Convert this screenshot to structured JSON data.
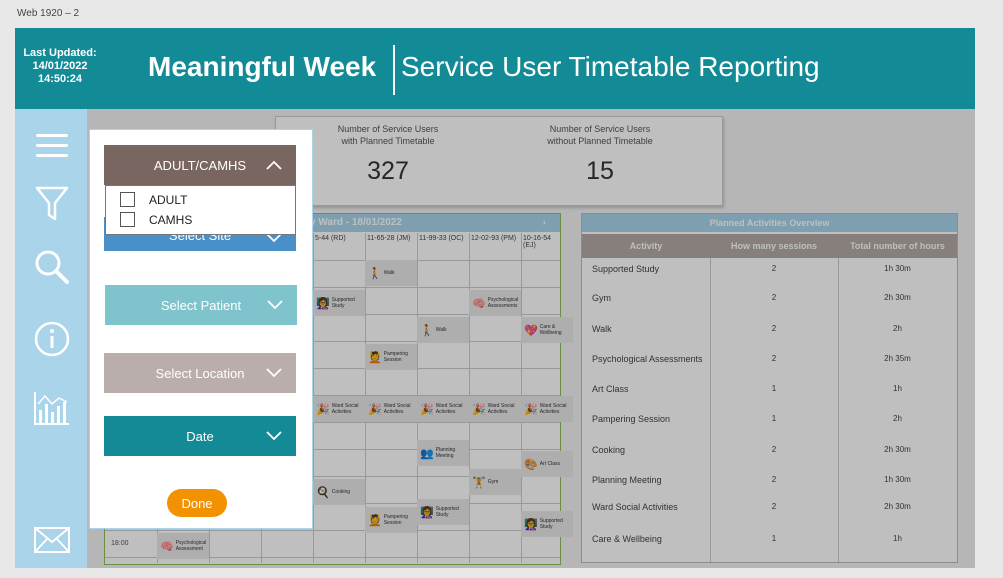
{
  "frame_title": "Web 1920 – 2",
  "header": {
    "last_updated_label": "Last Updated:",
    "last_updated_date": "14/01/2022",
    "last_updated_time": "14:50:24",
    "title_main": "Meaningful Week",
    "title_sub": "Service User Timetable Reporting"
  },
  "sidebar": {
    "icons": [
      "menu-icon",
      "filter-icon",
      "search-icon",
      "info-icon",
      "chart-icon",
      "mail-icon"
    ]
  },
  "kpi": {
    "with_label_1": "Number of Service Users",
    "with_label_2": "with Planned Timetable",
    "with_value": "327",
    "without_label_1": "Number of Service Users",
    "without_label_2": "without Planned Timetable",
    "without_value": "15"
  },
  "timetable": {
    "title": "y Ward - 18/01/2022",
    "columns": [
      "5-44 (RD)",
      "11-65-28 (JM)",
      "11-99-33 (OC)",
      "12-02-93 (PM)",
      "10-16-54 (EJ)"
    ],
    "time_label": "18:00",
    "cells": [
      {
        "label": "Walk",
        "emoji": "🚶"
      },
      {
        "label": "Supported Study",
        "emoji": "👩‍🏫"
      },
      {
        "label": "Psychological Assessments",
        "emoji": "🧠"
      },
      {
        "label": "Walk",
        "emoji": "🚶"
      },
      {
        "label": "Care & Wellbeing",
        "emoji": "💖"
      },
      {
        "label": "Pampering Session",
        "emoji": "💆"
      },
      {
        "label": "Ward Social Activities",
        "emoji": "🎉"
      },
      {
        "label": "Ward Social Activities",
        "emoji": "🎉"
      },
      {
        "label": "Ward Social Activities",
        "emoji": "🎉"
      },
      {
        "label": "Ward Social Activities",
        "emoji": "🎉"
      },
      {
        "label": "Ward Social Activities",
        "emoji": "🎉"
      },
      {
        "label": "Planning Meeting",
        "emoji": "👥"
      },
      {
        "label": "Art Class",
        "emoji": "🎨"
      },
      {
        "label": "Cooking",
        "emoji": "🍳"
      },
      {
        "label": "Gym",
        "emoji": "🏋"
      },
      {
        "label": "Pampering Session",
        "emoji": "💆"
      },
      {
        "label": "Supported Study",
        "emoji": "👩‍🏫"
      },
      {
        "label": "Supported Study",
        "emoji": "👩‍🏫"
      },
      {
        "label": "Psychological Assessment",
        "emoji": "🧠"
      }
    ]
  },
  "overview": {
    "title": "Planned Activities Overview",
    "headers": [
      "Activity",
      "How many sessions",
      "Total number of hours"
    ],
    "rows": [
      {
        "activity": "Supported Study",
        "sessions": "2",
        "hours": "1h 30m"
      },
      {
        "activity": "Gym",
        "sessions": "2",
        "hours": "2h 30m"
      },
      {
        "activity": "Walk",
        "sessions": "2",
        "hours": "2h"
      },
      {
        "activity": "Psychological Assessments",
        "sessions": "2",
        "hours": "2h 35m"
      },
      {
        "activity": "Art Class",
        "sessions": "1",
        "hours": "1h"
      },
      {
        "activity": "Pampering Session",
        "sessions": "1",
        "hours": "2h"
      },
      {
        "activity": "Cooking",
        "sessions": "2",
        "hours": "2h 30m"
      },
      {
        "activity": "Planning Meeting",
        "sessions": "2",
        "hours": "1h 30m"
      },
      {
        "activity": "Ward Social Activities",
        "sessions": "2",
        "hours": "2h 30m"
      },
      {
        "activity": "Care & Wellbeing",
        "sessions": "1",
        "hours": "1h"
      }
    ]
  },
  "filters": {
    "group_label": "ADULT/CAMHS",
    "options": [
      "ADULT",
      "CAMHS"
    ],
    "site_label": "Select Site",
    "patient_label": "Select Patient",
    "location_label": "Select Location",
    "date_label": "Date",
    "done_label": "Done"
  },
  "colors": {
    "header": "#138b96",
    "sidebar": "#a9d4ea",
    "group": "#7a6660",
    "site": "#4a90c8",
    "patient": "#7fc4cc",
    "location": "#b9aeab",
    "date": "#138b96",
    "done": "#f39200"
  }
}
